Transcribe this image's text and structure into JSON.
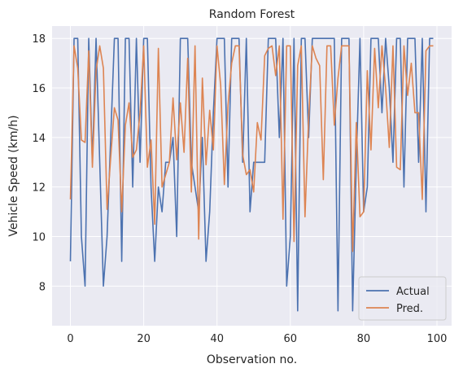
{
  "chart_data": {
    "type": "line",
    "title": "Random Forest",
    "xlabel": "Observation no.",
    "ylabel": "Vehicle Speed (km/h)",
    "xlim": [
      -5,
      104
    ],
    "ylim": [
      6.4,
      18.5
    ],
    "xticks": [
      0,
      20,
      40,
      60,
      80,
      100
    ],
    "yticks": [
      8,
      10,
      12,
      14,
      16,
      18
    ],
    "grid": true,
    "legend_position": "lower-right",
    "x": [
      0,
      1,
      2,
      3,
      4,
      5,
      6,
      7,
      8,
      9,
      10,
      11,
      12,
      13,
      14,
      15,
      16,
      17,
      18,
      19,
      20,
      21,
      22,
      23,
      24,
      25,
      26,
      27,
      28,
      29,
      30,
      31,
      32,
      33,
      34,
      35,
      36,
      37,
      38,
      39,
      40,
      41,
      42,
      43,
      44,
      45,
      46,
      47,
      48,
      49,
      50,
      51,
      52,
      53,
      54,
      55,
      56,
      57,
      58,
      59,
      60,
      61,
      62,
      63,
      64,
      65,
      66,
      67,
      68,
      69,
      70,
      71,
      72,
      73,
      74,
      75,
      76,
      77,
      78,
      79,
      80,
      81,
      82,
      83,
      84,
      85,
      86,
      87,
      88,
      89,
      90,
      91,
      92,
      93,
      94,
      95,
      96,
      97,
      98,
      99
    ],
    "series": [
      {
        "name": "Actual",
        "color": "#4c72b0",
        "values": [
          9,
          18,
          18,
          10,
          8,
          18,
          13,
          18,
          13,
          8,
          10,
          14,
          18,
          18,
          9,
          18,
          18,
          12,
          18,
          13,
          18,
          18,
          12,
          9,
          12,
          11,
          13,
          13,
          14,
          10,
          18,
          18,
          18,
          13,
          12,
          11,
          14,
          9,
          11,
          15,
          18,
          18,
          18,
          12,
          18,
          18,
          18,
          13,
          18,
          11,
          13,
          13,
          13,
          13,
          18,
          18,
          18,
          14,
          18,
          8,
          10,
          18,
          7,
          18,
          18,
          14,
          18,
          18,
          18,
          18,
          18,
          18,
          18,
          7,
          18,
          18,
          18,
          7,
          13,
          18,
          11,
          12,
          18,
          18,
          18,
          15,
          18,
          16,
          13,
          18,
          18,
          12,
          18,
          18,
          18,
          13,
          18,
          11,
          18,
          18
        ]
      },
      {
        "name": "Pred.",
        "color": "#dd8452",
        "values": [
          11.5,
          17.7,
          16.8,
          13.9,
          13.8,
          17.5,
          12.8,
          16.7,
          17.7,
          16.8,
          11.1,
          13.2,
          15.2,
          14.7,
          11.0,
          14.5,
          15.4,
          13.2,
          13.5,
          15.0,
          17.7,
          12.8,
          13.9,
          10.5,
          17.6,
          12.0,
          12.5,
          13.0,
          15.6,
          13.1,
          15.4,
          13.4,
          17.2,
          11.8,
          17.7,
          9.9,
          16.4,
          12.9,
          15.1,
          13.5,
          17.7,
          16.1,
          12.1,
          15.3,
          17.0,
          17.7,
          17.7,
          13.3,
          12.5,
          12.7,
          11.8,
          14.6,
          13.9,
          17.3,
          17.6,
          17.7,
          16.5,
          17.7,
          10.7,
          17.7,
          17.7,
          9.8,
          16.9,
          17.7,
          10.8,
          14.8,
          17.7,
          17.2,
          16.9,
          12.3,
          17.7,
          17.7,
          14.5,
          16.4,
          17.7,
          17.7,
          17.7,
          9.4,
          14.6,
          10.8,
          11.0,
          16.7,
          13.5,
          17.6,
          15.2,
          17.7,
          16.0,
          13.6,
          17.7,
          12.8,
          12.7,
          17.7,
          15.7,
          17.0,
          15.0,
          15.0,
          11.5,
          17.5,
          17.7,
          17.7
        ]
      }
    ]
  },
  "colors": {
    "plot_background": "#eaeaf2",
    "grid": "#ffffff"
  }
}
